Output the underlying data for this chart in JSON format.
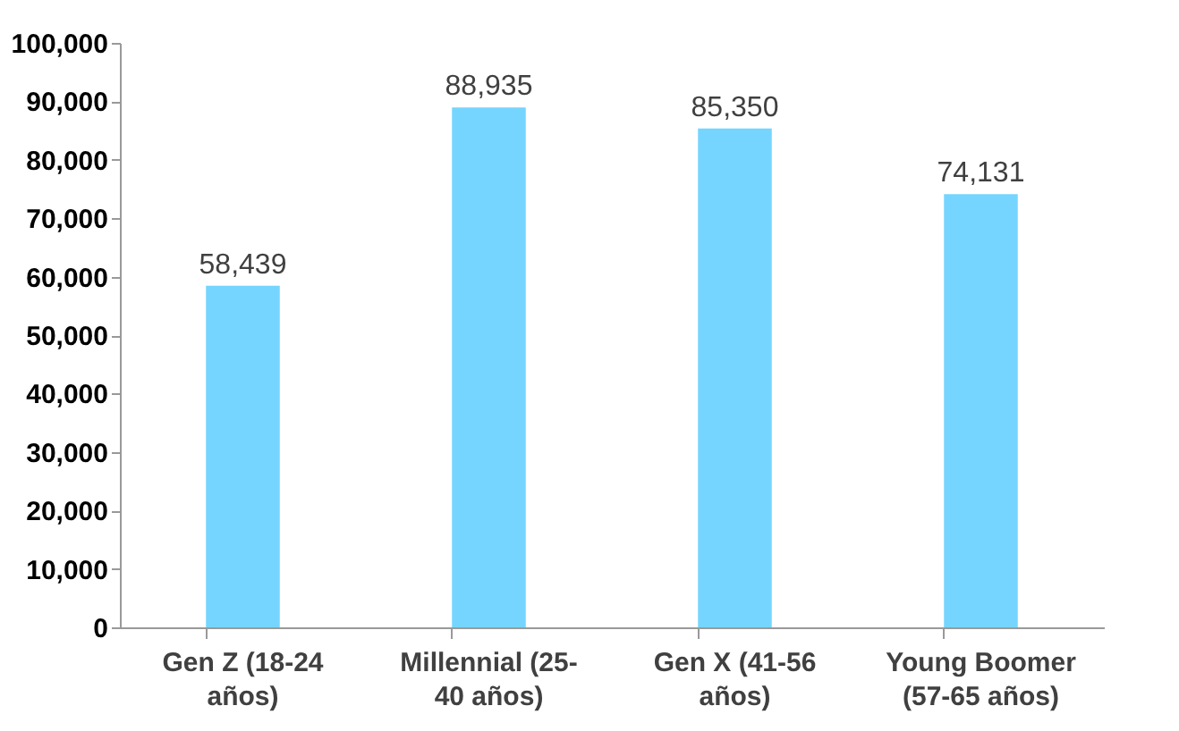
{
  "chart_data": {
    "type": "bar",
    "categories": [
      "Gen Z (18-24 años)",
      "Millennial (25-40 años)",
      "Gen X (41-56 años)",
      "Young Boomer (57-65 años)"
    ],
    "values": [
      58439,
      88935,
      85350,
      74131
    ],
    "value_labels": [
      "58,439",
      "88,935",
      "85,350",
      "74,131"
    ],
    "color": "#75d5ff",
    "ylim": [
      0,
      100000
    ],
    "yticks": [
      0,
      {
        "value": 10000,
        "label": "10,000"
      },
      {
        "value": 20000,
        "label": "20,000"
      },
      {
        "value": 30000,
        "label": "30,000"
      },
      {
        "value": 40000,
        "label": "40,000"
      },
      {
        "value": 50000,
        "label": "50,000"
      },
      {
        "value": 60000,
        "label": "60,000"
      },
      {
        "value": 70000,
        "label": "70,000"
      },
      {
        "value": 80000,
        "label": "80,000"
      },
      {
        "value": 90000,
        "label": "90,000"
      },
      {
        "value": 100000,
        "label": "100,000"
      }
    ],
    "grid": false
  }
}
